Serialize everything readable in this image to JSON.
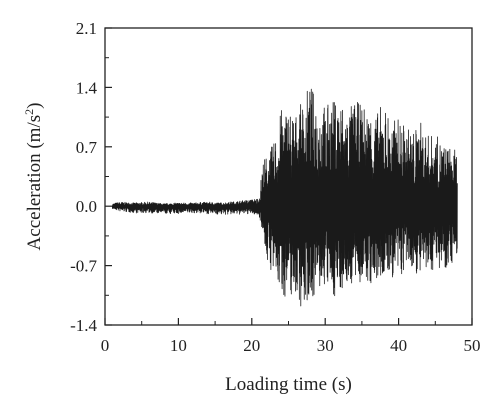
{
  "chart_data": {
    "type": "line",
    "xlabel": "Loading time (s)",
    "ylabel_main": "Acceleration (m/s",
    "ylabel_sup": "2",
    "ylabel_close": ")",
    "xlim": [
      0,
      50
    ],
    "ylim": [
      -1.4,
      2.1
    ],
    "x_ticks": [
      0,
      10,
      20,
      30,
      40,
      50
    ],
    "x_tick_labels": [
      "0",
      "10",
      "20",
      "30",
      "40",
      "50"
    ],
    "y_ticks": [
      -1.4,
      -0.7,
      0.0,
      0.7,
      1.4,
      2.1
    ],
    "y_tick_labels": [
      "-1.4",
      "-0.7",
      "0.0",
      "0.7",
      "1.4",
      "2.1"
    ],
    "grid": false,
    "series_color": "#1a1a1a",
    "data_range": [
      1.0,
      48.0
    ],
    "envelope": {
      "x": [
        1,
        2,
        4,
        6,
        8,
        10,
        12,
        14,
        16,
        18,
        20,
        21,
        21.5,
        22,
        23,
        24,
        25,
        26,
        27,
        27.8,
        29,
        30,
        31,
        32,
        33,
        34,
        35,
        36,
        37,
        38,
        39,
        40,
        41,
        42,
        43,
        44,
        45,
        46,
        47,
        48
      ],
      "upper": [
        0.03,
        0.05,
        0.04,
        0.05,
        0.03,
        0.04,
        0.04,
        0.05,
        0.04,
        0.06,
        0.08,
        0.1,
        0.55,
        0.6,
        0.75,
        1.15,
        1.2,
        1.1,
        1.25,
        1.45,
        1.3,
        1.2,
        1.25,
        1.3,
        1.15,
        1.25,
        1.2,
        1.15,
        1.1,
        1.25,
        1.0,
        1.05,
        0.95,
        0.9,
        1.0,
        0.85,
        0.85,
        0.75,
        0.7,
        0.65
      ],
      "lower": [
        -0.03,
        -0.06,
        -0.08,
        -0.08,
        -0.09,
        -0.09,
        -0.08,
        -0.09,
        -0.1,
        -0.1,
        -0.09,
        -0.12,
        -0.3,
        -0.65,
        -0.85,
        -1.05,
        -1.1,
        -1.05,
        -1.25,
        -1.1,
        -1.05,
        -0.95,
        -1.1,
        -1.0,
        -0.95,
        -0.95,
        -0.9,
        -0.95,
        -0.95,
        -0.85,
        -0.85,
        -0.9,
        -0.75,
        -0.75,
        -0.85,
        -0.85,
        -0.7,
        -0.75,
        -0.7,
        -0.6
      ]
    }
  }
}
